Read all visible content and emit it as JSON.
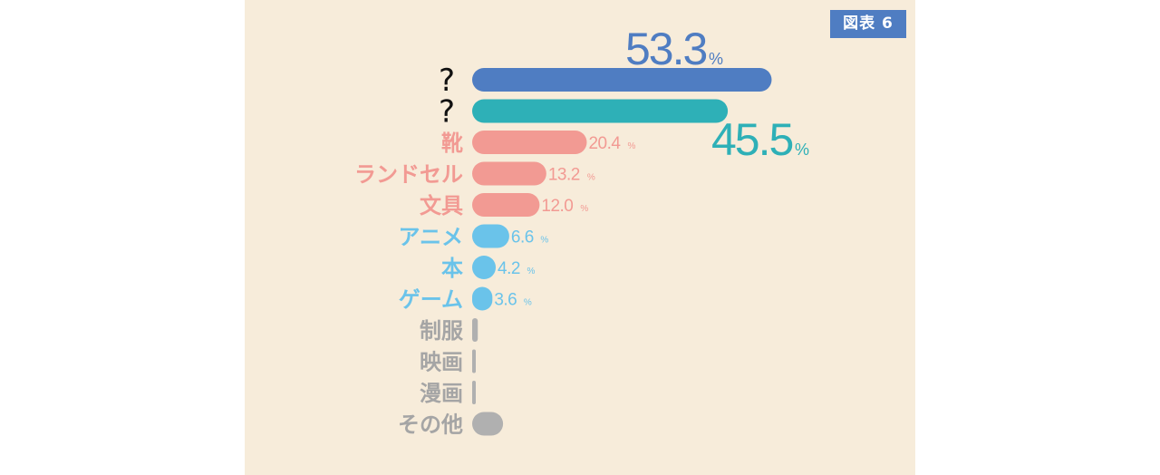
{
  "badge": "図表 6",
  "chart_data": {
    "type": "bar",
    "orientation": "horizontal",
    "unit": "%",
    "colors": {
      "blue": "#4f7dc2",
      "teal": "#2eb0b7",
      "pink": "#f29a93",
      "lightblue": "#6ac3ea",
      "gray": "#b0b0b0",
      "text_gray": "#a5a5a5"
    },
    "categories": [
      "?",
      "?",
      "靴",
      "ランドセル",
      "文具",
      "アニメ",
      "本",
      "ゲーム",
      "制服",
      "映画",
      "漫画",
      "その他"
    ],
    "values": [
      53.3,
      45.5,
      20.4,
      13.2,
      12.0,
      6.6,
      4.2,
      3.6,
      1.0,
      0.3,
      0.3,
      5.5
    ],
    "value_labels": [
      "53.3",
      "45.5",
      "20.4",
      "13.2",
      "12.0",
      "6.6",
      "4.2",
      "3.6",
      "",
      "",
      "",
      ""
    ],
    "bar_colors": [
      "blue",
      "teal",
      "pink",
      "pink",
      "pink",
      "lightblue",
      "lightblue",
      "lightblue",
      "gray",
      "gray",
      "gray",
      "gray"
    ],
    "label_colors": [
      "#111111",
      "#111111",
      "#f29a93",
      "#f29a93",
      "#f29a93",
      "#6ac3ea",
      "#6ac3ea",
      "#6ac3ea",
      "#a5a5a5",
      "#a5a5a5",
      "#a5a5a5",
      "#a5a5a5"
    ],
    "percent_sign": "%"
  }
}
